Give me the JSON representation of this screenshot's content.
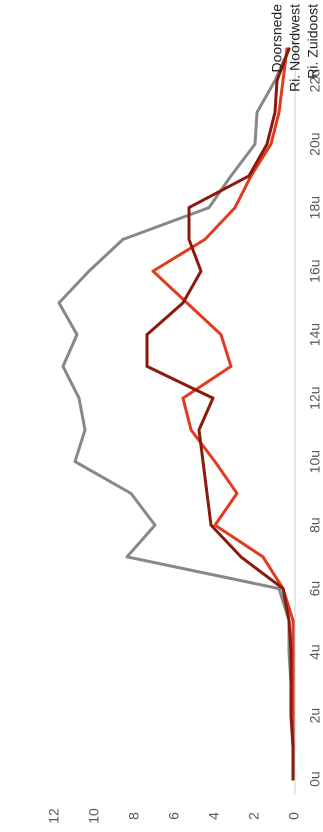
{
  "chart_data": {
    "type": "line",
    "orientation": "rotated-90-ccw",
    "title": "",
    "xlabel": "",
    "ylabel": "",
    "x": [
      0,
      1,
      2,
      3,
      4,
      5,
      6,
      7,
      8,
      9,
      10,
      11,
      12,
      13,
      14,
      15,
      16,
      17,
      18,
      19,
      20,
      21,
      22,
      23
    ],
    "xtick_values": [
      0,
      2,
      4,
      6,
      8,
      10,
      12,
      14,
      16,
      18,
      20,
      22
    ],
    "xtick_labels": [
      "0u",
      "2u",
      "4u",
      "6u",
      "8u",
      "10u",
      "12u",
      "14u",
      "16u",
      "18u",
      "20u",
      "22u"
    ],
    "xlim": [
      -0.5,
      23.5
    ],
    "ylim": [
      0,
      12
    ],
    "yticks": [
      "0",
      "2",
      "4",
      "6",
      "8",
      "10",
      "12"
    ],
    "grid": false,
    "legend_position": "top-right",
    "series": [
      {
        "name": "Doorsnede",
        "color": "#888888",
        "values": [
          0.1,
          0.1,
          0.1,
          0.2,
          0.3,
          0.3,
          0.8,
          8.4,
          7.0,
          8.2,
          11.0,
          10.5,
          10.8,
          11.6,
          10.9,
          11.8,
          10.3,
          8.6,
          4.3,
          3.2,
          2.0,
          1.9,
          1.0,
          0.3
        ]
      },
      {
        "name": "Ri. Noordwest",
        "color": "#e03c20",
        "values": [
          0.1,
          0.1,
          0.1,
          0.1,
          0.1,
          0.1,
          0.6,
          1.6,
          4.0,
          2.9,
          4.0,
          5.2,
          5.6,
          3.2,
          3.7,
          5.4,
          7.1,
          4.5,
          3.0,
          2.2,
          1.2,
          0.8,
          0.6,
          0.4
        ]
      },
      {
        "name": "Ri. Zuidoost",
        "color": "#8b1a0e",
        "values": [
          0.1,
          0.1,
          0.2,
          0.2,
          0.2,
          0.3,
          0.6,
          2.7,
          4.2,
          4.4,
          4.6,
          4.8,
          4.1,
          7.4,
          7.4,
          5.6,
          4.7,
          5.3,
          5.3,
          2.3,
          1.4,
          1.0,
          0.9,
          0.3
        ]
      }
    ]
  }
}
